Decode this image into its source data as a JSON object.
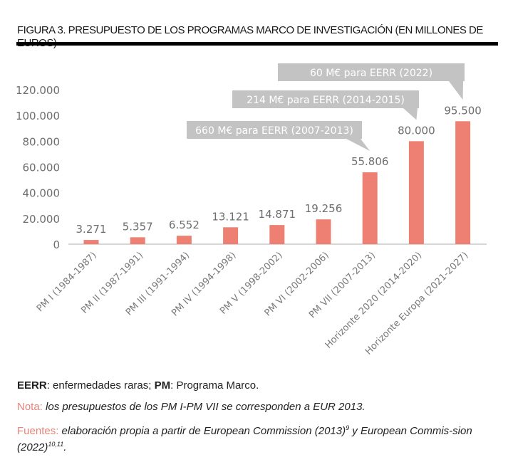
{
  "figure": {
    "title": "FIGURA 3. PRESUPUESTO DE LOS PROGRAMAS MARCO DE INVESTIGACIÓN (EN MILLONES DE EUROS)"
  },
  "chart_data": {
    "type": "bar",
    "title": "FIGURA 3. PRESUPUESTO DE LOS PROGRAMAS MARCO DE INVESTIGACIÓN (EN MILLONES DE EUROS)",
    "xlabel": "",
    "ylabel": "",
    "ylim": [
      0,
      120000
    ],
    "yticks": [
      0,
      20000,
      40000,
      60000,
      80000,
      100000,
      120000
    ],
    "ytick_labels": [
      "0",
      "20.000",
      "40.000",
      "60.000",
      "80.000",
      "100.000",
      "120.000"
    ],
    "grid": false,
    "bar_color": "#ee7f73",
    "categories": [
      "PM I (1984-1987)",
      "PM II (1987-1991)",
      "PM III (1991-1994)",
      "PM IV (1994-1998)",
      "PM V (1998-2002)",
      "PM VI (2002-2006)",
      "PM VII (2007-2013)",
      "Horizonte 2020 (2014-2020)",
      "Horizonte Europa (2021-2027)"
    ],
    "values": [
      3271,
      5357,
      6552,
      13121,
      14871,
      19256,
      55806,
      80000,
      95500
    ],
    "value_labels": [
      "3.271",
      "5.357",
      "6.552",
      "13.121",
      "14.871",
      "19.256",
      "55.806",
      "80.000",
      "95.500"
    ],
    "annotations": [
      {
        "text": "660 M€ para EERR (2007-2013)",
        "category": "PM VII (2007-2013)"
      },
      {
        "text": "214 M€ para EERR (2014-2015)",
        "category": "Horizonte 2020 (2014-2020)"
      },
      {
        "text": "60 M€ para EERR (2022)",
        "category": "Horizonte Europa (2021-2027)"
      }
    ],
    "annotation_color": "#c3c3c3"
  },
  "notes": {
    "abbr": [
      {
        "key": "EERR",
        "text": ": enfermedades raras; "
      },
      {
        "key": "PM",
        "text": ": Programa Marco."
      }
    ],
    "nota_label": "Nota:",
    "nota_text": "los presupuestos de los PM I-PM VII se corresponden a EUR 2013.",
    "fuentes_label": "Fuentes:",
    "fuentes_text_1": "elaboración propia a partir de European Commission (2013)",
    "fuentes_sup_1": "9",
    "fuentes_text_2": " y European Commis-sion (2022)",
    "fuentes_sup_2": "10,11",
    "fuentes_text_3": "."
  }
}
